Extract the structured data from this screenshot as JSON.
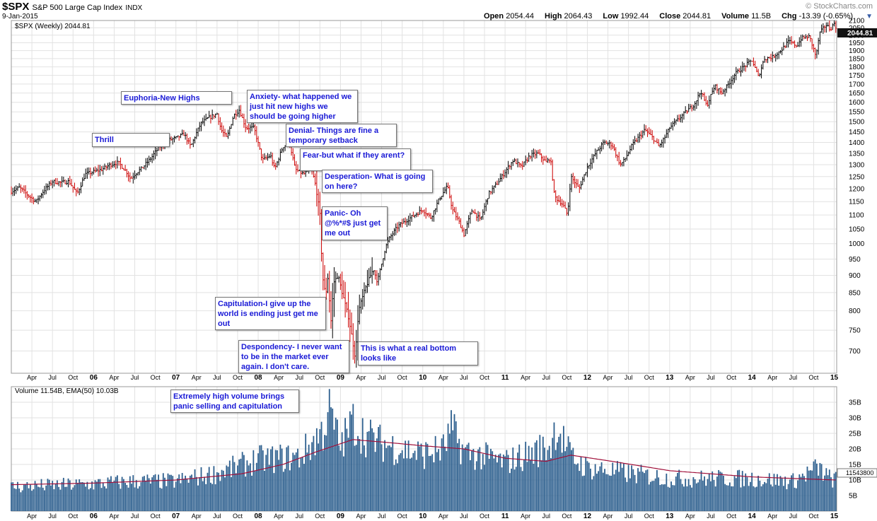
{
  "header": {
    "symbol": "$SPX",
    "name": "S&P 500 Large Cap Index",
    "exchange": "INDX",
    "date": "9-Jan-2015",
    "brand": "© StockCharts.com",
    "open_label": "Open",
    "open": "2054.44",
    "high_label": "High",
    "high": "2064.43",
    "low_label": "Low",
    "low": "1992.44",
    "close_label": "Close",
    "close": "2044.81",
    "volume_label": "Volume",
    "volume": "11.5B",
    "chg_label": "Chg",
    "chg": "-13.39 (-0.65%)"
  },
  "price_legend": "$SPX (Weekly) 2044.81",
  "price_last_label": "2044.81",
  "volume_legend": "Volume 11.54B, EMA(50) 10.03B",
  "volume_last_label": "11543800",
  "annotations": [
    "Euphoria-New Highs",
    "Thrill",
    "Anxiety- what happened we just hit new highs we should be going higher",
    "Denial- Things are fine a temporary setback",
    "Fear-but what if they arent?",
    "Desperation- What is going on here?",
    "Panic- Oh @%*#$ just get me out",
    "Capitulation-I give up the world is ending just get me out",
    "Despondency- I never want to be in the market ever again.  I don't care.",
    "This is what a real bottom looks like",
    "Extremely high volume brings panic selling and capitulation"
  ],
  "colors": {
    "up": "#000000",
    "down": "#cc0000",
    "volume_bar": "#2d5f8e",
    "ema": "#a0103a",
    "grid": "#e2e2e2",
    "note_text": "#1a1ad6"
  },
  "chart_data": [
    {
      "type": "line",
      "title": "$SPX (Weekly) 2044.81",
      "x_range": [
        2005.0,
        2015.03
      ],
      "ylim": [
        650,
        2100
      ],
      "yscale": "log",
      "y_ticks": [
        2100,
        2050,
        2000,
        1950,
        1900,
        1850,
        1800,
        1750,
        1700,
        1650,
        1600,
        1550,
        1500,
        1450,
        1400,
        1350,
        1300,
        1250,
        1200,
        1150,
        1100,
        1050,
        1000,
        950,
        900,
        850,
        800,
        750,
        700
      ],
      "x_ticks": [
        {
          "t": 2005.25,
          "label": "Apr"
        },
        {
          "t": 2005.5,
          "label": "Jul"
        },
        {
          "t": 2005.75,
          "label": "Oct"
        },
        {
          "t": 2006.0,
          "label": "06"
        },
        {
          "t": 2006.25,
          "label": "Apr"
        },
        {
          "t": 2006.5,
          "label": "Jul"
        },
        {
          "t": 2006.75,
          "label": "Oct"
        },
        {
          "t": 2007.0,
          "label": "07"
        },
        {
          "t": 2007.25,
          "label": "Apr"
        },
        {
          "t": 2007.5,
          "label": "Jul"
        },
        {
          "t": 2007.75,
          "label": "Oct"
        },
        {
          "t": 2008.0,
          "label": "08"
        },
        {
          "t": 2008.25,
          "label": "Apr"
        },
        {
          "t": 2008.5,
          "label": "Jul"
        },
        {
          "t": 2008.75,
          "label": "Oct"
        },
        {
          "t": 2009.0,
          "label": "09"
        },
        {
          "t": 2009.25,
          "label": "Apr"
        },
        {
          "t": 2009.5,
          "label": "Jul"
        },
        {
          "t": 2009.75,
          "label": "Oct"
        },
        {
          "t": 2010.0,
          "label": "10"
        },
        {
          "t": 2010.25,
          "label": "Apr"
        },
        {
          "t": 2010.5,
          "label": "Jul"
        },
        {
          "t": 2010.75,
          "label": "Oct"
        },
        {
          "t": 2011.0,
          "label": "11"
        },
        {
          "t": 2011.25,
          "label": "Apr"
        },
        {
          "t": 2011.5,
          "label": "Jul"
        },
        {
          "t": 2011.75,
          "label": "Oct"
        },
        {
          "t": 2012.0,
          "label": "12"
        },
        {
          "t": 2012.25,
          "label": "Apr"
        },
        {
          "t": 2012.5,
          "label": "Jul"
        },
        {
          "t": 2012.75,
          "label": "Oct"
        },
        {
          "t": 2013.0,
          "label": "13"
        },
        {
          "t": 2013.25,
          "label": "Apr"
        },
        {
          "t": 2013.5,
          "label": "Jul"
        },
        {
          "t": 2013.75,
          "label": "Oct"
        },
        {
          "t": 2014.0,
          "label": "14"
        },
        {
          "t": 2014.25,
          "label": "Apr"
        },
        {
          "t": 2014.5,
          "label": "Jul"
        },
        {
          "t": 2014.75,
          "label": "Oct"
        },
        {
          "t": 2015.0,
          "label": "15"
        }
      ],
      "series": [
        {
          "name": "$SPX weekly close (approx.)",
          "points": [
            [
              2005.0,
              1190
            ],
            [
              2005.1,
              1205
            ],
            [
              2005.2,
              1175
            ],
            [
              2005.3,
              1150
            ],
            [
              2005.4,
              1195
            ],
            [
              2005.5,
              1230
            ],
            [
              2005.6,
              1225
            ],
            [
              2005.7,
              1230
            ],
            [
              2005.8,
              1180
            ],
            [
              2005.9,
              1260
            ],
            [
              2006.0,
              1270
            ],
            [
              2006.1,
              1280
            ],
            [
              2006.2,
              1300
            ],
            [
              2006.3,
              1310
            ],
            [
              2006.4,
              1270
            ],
            [
              2006.45,
              1240
            ],
            [
              2006.5,
              1260
            ],
            [
              2006.6,
              1290
            ],
            [
              2006.7,
              1330
            ],
            [
              2006.8,
              1380
            ],
            [
              2006.9,
              1410
            ],
            [
              2007.0,
              1420
            ],
            [
              2007.1,
              1440
            ],
            [
              2007.18,
              1380
            ],
            [
              2007.3,
              1490
            ],
            [
              2007.4,
              1520
            ],
            [
              2007.5,
              1540
            ],
            [
              2007.55,
              1460
            ],
            [
              2007.62,
              1420
            ],
            [
              2007.7,
              1530
            ],
            [
              2007.77,
              1560
            ],
            [
              2007.85,
              1470
            ],
            [
              2007.95,
              1470
            ],
            [
              2008.05,
              1320
            ],
            [
              2008.15,
              1340
            ],
            [
              2008.2,
              1280
            ],
            [
              2008.3,
              1380
            ],
            [
              2008.38,
              1400
            ],
            [
              2008.45,
              1280
            ],
            [
              2008.55,
              1260
            ],
            [
              2008.65,
              1280
            ],
            [
              2008.7,
              1210
            ],
            [
              2008.75,
              1100
            ],
            [
              2008.78,
              900
            ],
            [
              2008.82,
              840
            ],
            [
              2008.85,
              900
            ],
            [
              2008.88,
              760
            ],
            [
              2008.92,
              880
            ],
            [
              2008.97,
              900
            ],
            [
              2009.02,
              850
            ],
            [
              2009.1,
              780
            ],
            [
              2009.15,
              720
            ],
            [
              2009.18,
              683
            ],
            [
              2009.22,
              800
            ],
            [
              2009.3,
              860
            ],
            [
              2009.4,
              920
            ],
            [
              2009.45,
              880
            ],
            [
              2009.55,
              990
            ],
            [
              2009.6,
              1020
            ],
            [
              2009.7,
              1060
            ],
            [
              2009.8,
              1080
            ],
            [
              2009.9,
              1100
            ],
            [
              2010.0,
              1120
            ],
            [
              2010.1,
              1090
            ],
            [
              2010.2,
              1160
            ],
            [
              2010.3,
              1210
            ],
            [
              2010.36,
              1120
            ],
            [
              2010.45,
              1070
            ],
            [
              2010.5,
              1030
            ],
            [
              2010.6,
              1120
            ],
            [
              2010.7,
              1080
            ],
            [
              2010.8,
              1180
            ],
            [
              2010.9,
              1220
            ],
            [
              2011.0,
              1270
            ],
            [
              2011.1,
              1320
            ],
            [
              2011.2,
              1290
            ],
            [
              2011.3,
              1340
            ],
            [
              2011.4,
              1350
            ],
            [
              2011.5,
              1310
            ],
            [
              2011.55,
              1330
            ],
            [
              2011.6,
              1170
            ],
            [
              2011.7,
              1140
            ],
            [
              2011.76,
              1100
            ],
            [
              2011.8,
              1250
            ],
            [
              2011.9,
              1200
            ],
            [
              2012.0,
              1290
            ],
            [
              2012.1,
              1350
            ],
            [
              2012.2,
              1400
            ],
            [
              2012.3,
              1390
            ],
            [
              2012.4,
              1300
            ],
            [
              2012.45,
              1320
            ],
            [
              2012.55,
              1390
            ],
            [
              2012.7,
              1460
            ],
            [
              2012.8,
              1420
            ],
            [
              2012.87,
              1380
            ],
            [
              2012.95,
              1430
            ],
            [
              2013.0,
              1470
            ],
            [
              2013.1,
              1510
            ],
            [
              2013.2,
              1550
            ],
            [
              2013.3,
              1590
            ],
            [
              2013.38,
              1660
            ],
            [
              2013.45,
              1580
            ],
            [
              2013.55,
              1690
            ],
            [
              2013.63,
              1650
            ],
            [
              2013.7,
              1690
            ],
            [
              2013.8,
              1760
            ],
            [
              2013.9,
              1800
            ],
            [
              2014.0,
              1840
            ],
            [
              2014.08,
              1740
            ],
            [
              2014.15,
              1850
            ],
            [
              2014.25,
              1860
            ],
            [
              2014.35,
              1900
            ],
            [
              2014.45,
              1960
            ],
            [
              2014.55,
              1930
            ],
            [
              2014.6,
              1980
            ],
            [
              2014.7,
              1990
            ],
            [
              2014.78,
              1860
            ],
            [
              2014.82,
              2010
            ],
            [
              2014.9,
              2070
            ],
            [
              2014.95,
              2040
            ],
            [
              2015.0,
              2080
            ],
            [
              2015.03,
              2045
            ]
          ]
        }
      ]
    },
    {
      "type": "bar",
      "title": "Volume 11.54B, EMA(50) 10.03B",
      "x_range": [
        2005.0,
        2015.03
      ],
      "ylim": [
        0,
        40
      ],
      "y_unit": "B",
      "y_ticks": [
        5,
        10,
        15,
        20,
        25,
        30,
        35
      ],
      "x_ticks_same_as_price": true,
      "series": [
        {
          "name": "Volume (weekly, approx. envelope)",
          "points": [
            [
              2005.0,
              9
            ],
            [
              2006.0,
              10
            ],
            [
              2006.5,
              11
            ],
            [
              2007.0,
              11
            ],
            [
              2007.5,
              14
            ],
            [
              2008.0,
              19
            ],
            [
              2008.5,
              20
            ],
            [
              2008.8,
              30
            ],
            [
              2008.85,
              38
            ],
            [
              2009.0,
              24
            ],
            [
              2009.15,
              33
            ],
            [
              2009.3,
              28
            ],
            [
              2009.5,
              25
            ],
            [
              2010.0,
              21
            ],
            [
              2010.25,
              23
            ],
            [
              2010.35,
              30
            ],
            [
              2010.5,
              22
            ],
            [
              2011.0,
              18
            ],
            [
              2011.55,
              24
            ],
            [
              2011.62,
              32
            ],
            [
              2011.8,
              20
            ],
            [
              2012.0,
              16
            ],
            [
              2012.5,
              14
            ],
            [
              2013.0,
              12
            ],
            [
              2014.0,
              12
            ],
            [
              2014.5,
              11
            ],
            [
              2014.8,
              16
            ],
            [
              2014.95,
              12
            ],
            [
              2015.03,
              11.5
            ]
          ]
        },
        {
          "name": "EMA(50)",
          "points": [
            [
              2005.0,
              8.5
            ],
            [
              2006.0,
              9
            ],
            [
              2007.0,
              10
            ],
            [
              2007.8,
              12
            ],
            [
              2008.3,
              15
            ],
            [
              2008.7,
              19
            ],
            [
              2009.15,
              23
            ],
            [
              2009.6,
              22
            ],
            [
              2010.0,
              21
            ],
            [
              2010.5,
              20
            ],
            [
              2011.0,
              17
            ],
            [
              2011.5,
              16
            ],
            [
              2011.8,
              18
            ],
            [
              2012.3,
              16
            ],
            [
              2013.0,
              13
            ],
            [
              2013.5,
              12
            ],
            [
              2014.0,
              11
            ],
            [
              2014.5,
              10.5
            ],
            [
              2015.03,
              10
            ]
          ]
        }
      ]
    }
  ]
}
